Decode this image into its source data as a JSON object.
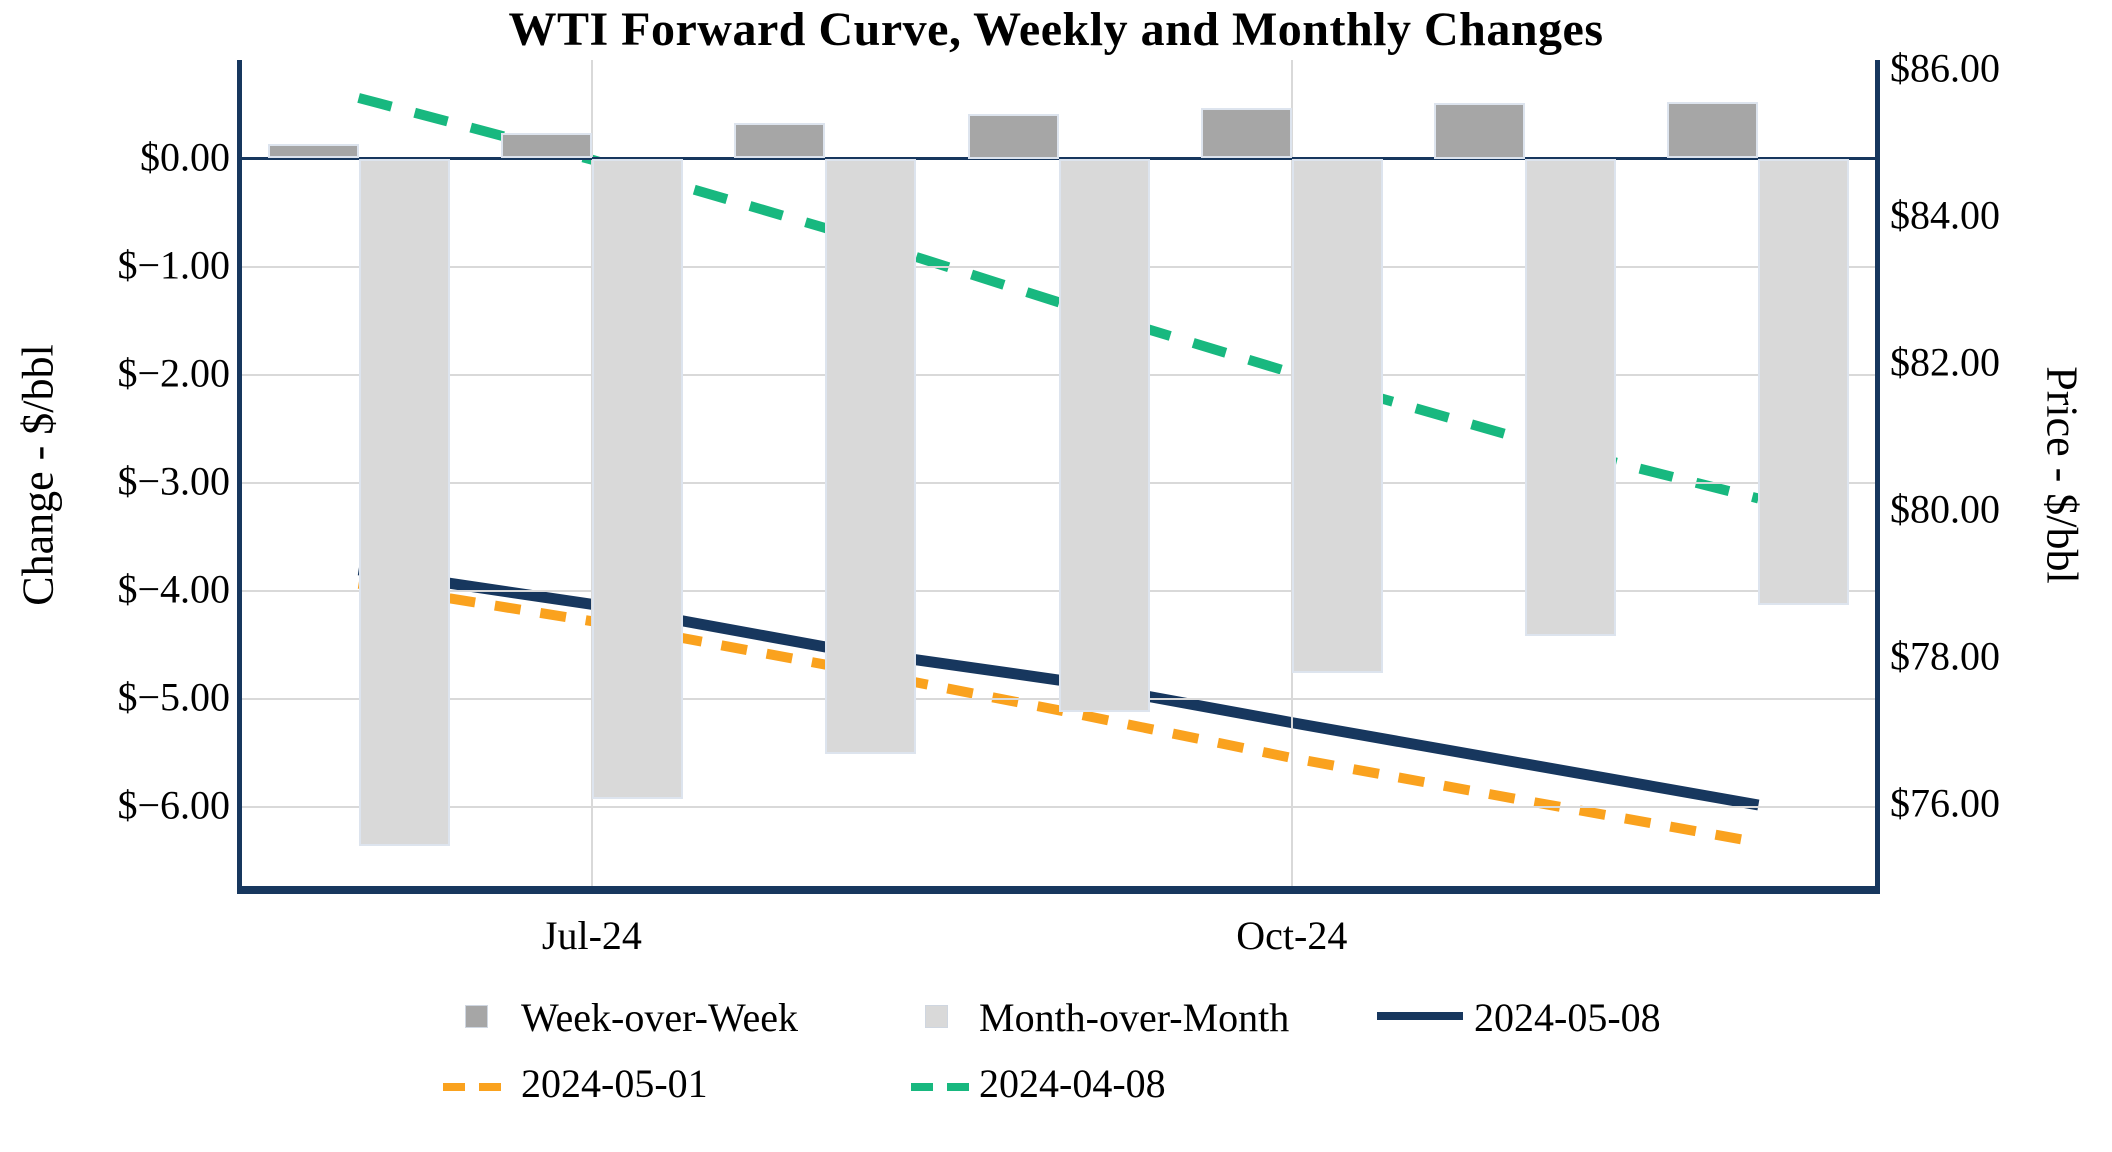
{
  "title": "WTI Forward Curve, Weekly and Monthly Changes",
  "chart_data": {
    "type": "combo-bar-line",
    "n_groups": 7,
    "x_tick_labels": [
      {
        "slot": 1,
        "label": "Jul-24"
      },
      {
        "slot": 4,
        "label": "Oct-24"
      }
    ],
    "left_axis": {
      "title": "Change - $/bbl",
      "min": -6.765,
      "max": 0.911,
      "ticks": [
        {
          "value": 0,
          "label": "$0.00"
        },
        {
          "value": -1,
          "label": "$−1.00"
        },
        {
          "value": -2,
          "label": "$−2.00"
        },
        {
          "value": -3,
          "label": "$−3.00"
        },
        {
          "value": -4,
          "label": "$−4.00"
        },
        {
          "value": -5,
          "label": "$−5.00"
        },
        {
          "value": -6,
          "label": "$−6.00"
        }
      ]
    },
    "right_axis": {
      "title": "Price - $/bbl",
      "min": 74.843,
      "max": 86.136,
      "ticks": [
        {
          "value": 86,
          "label": "$86.00"
        },
        {
          "value": 84,
          "label": "$84.00"
        },
        {
          "value": 82,
          "label": "$82.00"
        },
        {
          "value": 80,
          "label": "$80.00"
        },
        {
          "value": 78,
          "label": "$78.00"
        },
        {
          "value": 76,
          "label": "$76.00"
        }
      ]
    },
    "bar_series": [
      {
        "name": "Week-over-Week",
        "axis": "left",
        "color": "#a6a6a6",
        "values": [
          0.13,
          0.24,
          0.33,
          0.41,
          0.47,
          0.51,
          0.52
        ]
      },
      {
        "name": "Month-over-Month",
        "axis": "left",
        "color": "#d9d9d9",
        "values": [
          -6.36,
          -5.92,
          -5.51,
          -5.12,
          -4.76,
          -4.42,
          -4.13
        ]
      }
    ],
    "line_series": [
      {
        "name": "2024-05-08",
        "axis": "right",
        "color": "#17375e",
        "style": "solid",
        "values": [
          79.2,
          78.73,
          78.15,
          77.7,
          77.12,
          76.56,
          76.0
        ]
      },
      {
        "name": "2024-05-01",
        "axis": "right",
        "color": "#faa21e",
        "style": "dashed",
        "values": [
          79.01,
          78.5,
          77.91,
          77.29,
          76.64,
          76.06,
          75.49
        ]
      },
      {
        "name": "2024-04-08",
        "axis": "right",
        "color": "#18b87f",
        "style": "dashed",
        "values": [
          85.62,
          84.78,
          83.85,
          82.84,
          81.88,
          80.97,
          80.17
        ]
      }
    ],
    "grid": {
      "gridline_color": "#d9d9d9",
      "axis_color": "#17375e",
      "background": "#ffffff"
    },
    "legend_position": "bottom"
  }
}
